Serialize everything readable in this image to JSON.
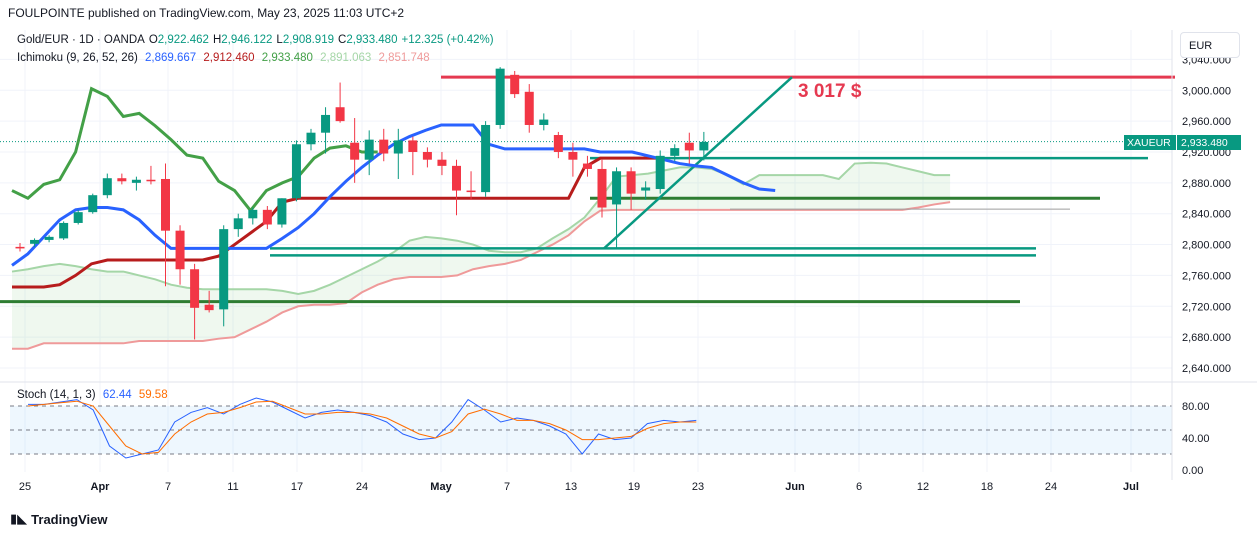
{
  "header": {
    "publisher_line": "FOULPOINTE published on TradingView.com, May 23, 2025 11:03 UTC+2"
  },
  "legend": {
    "symbol": "Gold/EUR · 1D · OANDA",
    "open_label": "O",
    "open": "2,922.462",
    "high_label": "H",
    "high": "2,946.122",
    "low_label": "L",
    "low": "2,908.919",
    "close_label": "C",
    "close": "2,933.480",
    "change": "+12.325 (+0.42%)",
    "ichimoku_label": "Ichimoku (9, 26, 52, 26)",
    "ichimoku_values": [
      {
        "value": "2,869.667",
        "color": "#2962ff"
      },
      {
        "value": "2,912.460",
        "color": "#b71c1c"
      },
      {
        "value": "2,933.480",
        "color": "#43a047"
      },
      {
        "value": "2,891.063",
        "color": "#a5d6a7"
      },
      {
        "value": "2,851.748",
        "color": "#ef9a9a"
      }
    ],
    "stoch_label": "Stoch (14, 1, 3)",
    "stoch_k": "62.44",
    "stoch_d": "59.58"
  },
  "currency_button": "EUR",
  "annotation": "3 017 $",
  "price_tag": {
    "symbol": "XAUEUR",
    "value": "2,933.480"
  },
  "footer_logo": "TradingView",
  "colors": {
    "up": "#089981",
    "down": "#f23645",
    "tenkan": "#2962ff",
    "kijun": "#b71c1c",
    "chikou": "#43a047",
    "spanA": "#a5d6a7",
    "spanB": "#ef9a9a",
    "teal": "#089981",
    "resistance": "#e53950",
    "stoch_k": "#2962ff",
    "stoch_d": "#ff6d00"
  },
  "chart_data": {
    "type": "candlestick",
    "price_axis_ticks": [
      "3,040.000",
      "3,000.000",
      "2,960.000",
      "2,920.000",
      "2,880.000",
      "2,840.000",
      "2,800.000",
      "2,760.000",
      "2,720.000",
      "2,680.000",
      "2,640.000"
    ],
    "stoch_axis_ticks": [
      "80.00",
      "40.00",
      "0.00"
    ],
    "x_ticks": [
      "25",
      "Apr",
      "7",
      "11",
      "17",
      "24",
      "May",
      "7",
      "13",
      "19",
      "23",
      "Jun",
      "6",
      "12",
      "18",
      "24",
      "Jul"
    ],
    "candles": [
      {
        "o": 2797,
        "h": 2802,
        "l": 2791,
        "c": 2795
      },
      {
        "o": 2801,
        "h": 2808,
        "l": 2797,
        "c": 2806
      },
      {
        "o": 2806,
        "h": 2812,
        "l": 2803,
        "c": 2810
      },
      {
        "o": 2808,
        "h": 2830,
        "l": 2806,
        "c": 2828
      },
      {
        "o": 2828,
        "h": 2845,
        "l": 2826,
        "c": 2842
      },
      {
        "o": 2842,
        "h": 2866,
        "l": 2840,
        "c": 2864
      },
      {
        "o": 2864,
        "h": 2892,
        "l": 2860,
        "c": 2886
      },
      {
        "o": 2886,
        "h": 2892,
        "l": 2878,
        "c": 2882
      },
      {
        "o": 2880,
        "h": 2888,
        "l": 2870,
        "c": 2884
      },
      {
        "o": 2884,
        "h": 2902,
        "l": 2878,
        "c": 2882
      },
      {
        "o": 2885,
        "h": 2905,
        "l": 2746,
        "c": 2818
      },
      {
        "o": 2818,
        "h": 2825,
        "l": 2748,
        "c": 2768
      },
      {
        "o": 2768,
        "h": 2775,
        "l": 2677,
        "c": 2718
      },
      {
        "o": 2722,
        "h": 2740,
        "l": 2712,
        "c": 2715
      },
      {
        "o": 2716,
        "h": 2825,
        "l": 2694,
        "c": 2820
      },
      {
        "o": 2820,
        "h": 2840,
        "l": 2810,
        "c": 2834
      },
      {
        "o": 2834,
        "h": 2848,
        "l": 2826,
        "c": 2845
      },
      {
        "o": 2845,
        "h": 2850,
        "l": 2820,
        "c": 2826
      },
      {
        "o": 2826,
        "h": 2860,
        "l": 2822,
        "c": 2860
      },
      {
        "o": 2860,
        "h": 2935,
        "l": 2856,
        "c": 2930
      },
      {
        "o": 2930,
        "h": 2950,
        "l": 2922,
        "c": 2945
      },
      {
        "o": 2945,
        "h": 2978,
        "l": 2918,
        "c": 2968
      },
      {
        "o": 2978,
        "h": 3010,
        "l": 2958,
        "c": 2960
      },
      {
        "o": 2932,
        "h": 2964,
        "l": 2880,
        "c": 2910
      },
      {
        "o": 2910,
        "h": 2948,
        "l": 2890,
        "c": 2936
      },
      {
        "o": 2936,
        "h": 2950,
        "l": 2908,
        "c": 2918
      },
      {
        "o": 2918,
        "h": 2950,
        "l": 2885,
        "c": 2935
      },
      {
        "o": 2935,
        "h": 2940,
        "l": 2890,
        "c": 2920
      },
      {
        "o": 2920,
        "h": 2926,
        "l": 2900,
        "c": 2910
      },
      {
        "o": 2910,
        "h": 2920,
        "l": 2890,
        "c": 2902
      },
      {
        "o": 2902,
        "h": 2910,
        "l": 2838,
        "c": 2870
      },
      {
        "o": 2870,
        "h": 2895,
        "l": 2858,
        "c": 2868
      },
      {
        "o": 2868,
        "h": 2960,
        "l": 2862,
        "c": 2955
      },
      {
        "o": 2955,
        "h": 3030,
        "l": 2950,
        "c": 3028
      },
      {
        "o": 3020,
        "h": 3025,
        "l": 2990,
        "c": 2995
      },
      {
        "o": 2998,
        "h": 3008,
        "l": 2945,
        "c": 2955
      },
      {
        "o": 2955,
        "h": 2970,
        "l": 2948,
        "c": 2962
      },
      {
        "o": 2942,
        "h": 2946,
        "l": 2912,
        "c": 2920
      },
      {
        "o": 2920,
        "h": 2932,
        "l": 2888,
        "c": 2910
      },
      {
        "o": 2905,
        "h": 2915,
        "l": 2888,
        "c": 2898
      },
      {
        "o": 2898,
        "h": 2910,
        "l": 2835,
        "c": 2848
      },
      {
        "o": 2852,
        "h": 2900,
        "l": 2795,
        "c": 2895
      },
      {
        "o": 2895,
        "h": 2900,
        "l": 2845,
        "c": 2866
      },
      {
        "o": 2870,
        "h": 2882,
        "l": 2858,
        "c": 2874
      },
      {
        "o": 2872,
        "h": 2922,
        "l": 2866,
        "c": 2915
      },
      {
        "o": 2915,
        "h": 2930,
        "l": 2908,
        "c": 2925
      },
      {
        "o": 2932,
        "h": 2945,
        "l": 2905,
        "c": 2922
      },
      {
        "o": 2922,
        "h": 2946,
        "l": 2909,
        "c": 2933
      }
    ],
    "tenkan": [
      2773,
      2788,
      2810,
      2832,
      2845,
      2848,
      2848,
      2845,
      2832,
      2812,
      2795,
      2795,
      2795,
      2795,
      2795,
      2795,
      2795,
      2808,
      2822,
      2840,
      2862,
      2882,
      2900,
      2916,
      2930,
      2940,
      2948,
      2955,
      2955,
      2955,
      2930,
      2924,
      2924,
      2924,
      2924,
      2924,
      2924,
      2920,
      2920,
      2920,
      2915,
      2910,
      2905,
      2902,
      2900,
      2890,
      2880,
      2872,
      2870
    ],
    "kijun": [
      2745,
      2745,
      2745,
      2748,
      2760,
      2775,
      2780,
      2780,
      2780,
      2780,
      2780,
      2780,
      2780,
      2785,
      2800,
      2815,
      2830,
      2855,
      2860,
      2860,
      2860,
      2860,
      2860,
      2860,
      2860,
      2860,
      2860,
      2860,
      2860,
      2860,
      2860,
      2860,
      2860,
      2860,
      2860,
      2860,
      2900,
      2912,
      2912,
      2912,
      2912,
      2912
    ],
    "chikou": [
      2870,
      2860,
      2878,
      2884,
      2920,
      3002,
      2992,
      2966,
      2970,
      2954,
      2936,
      2916,
      2912,
      2882,
      2870,
      2844,
      2870,
      2880,
      2888,
      2912,
      2925,
      2928,
      2920,
      2920
    ],
    "span_a": [
      2765,
      2768,
      2772,
      2775,
      2772,
      2768,
      2765,
      2765,
      2760,
      2755,
      2748,
      2744,
      2742,
      2742,
      2742,
      2742,
      2742,
      2740,
      2736,
      2740,
      2748,
      2758,
      2768,
      2778,
      2790,
      2805,
      2810,
      2808,
      2805,
      2800,
      2792,
      2790,
      2790,
      2795,
      2808,
      2820,
      2835,
      2860,
      2888,
      2890,
      2892,
      2896,
      2900,
      2900,
      2898,
      2890,
      2878,
      2890,
      2890,
      2890,
      2890,
      2890,
      2885,
      2905,
      2906,
      2905,
      2900,
      2895,
      2890,
      2890
    ],
    "span_b": [
      2665,
      2665,
      2672,
      2672,
      2672,
      2672,
      2672,
      2672,
      2675,
      2675,
      2675,
      2675,
      2675,
      2678,
      2680,
      2690,
      2700,
      2712,
      2720,
      2722,
      2722,
      2724,
      2738,
      2748,
      2755,
      2758,
      2758,
      2758,
      2760,
      2768,
      2772,
      2775,
      2780,
      2790,
      2800,
      2812,
      2830,
      2844,
      2845,
      2845,
      2845,
      2845,
      2845,
      2845,
      2845,
      2845,
      2845,
      2845,
      2845,
      2845,
      2845,
      2845,
      2845,
      2845,
      2845,
      2845,
      2845,
      2848,
      2852,
      2855
    ],
    "stoch_k": [
      82,
      82,
      85,
      88,
      75,
      30,
      15,
      20,
      25,
      60,
      72,
      78,
      70,
      82,
      90,
      85,
      75,
      65,
      72,
      75,
      72,
      68,
      60,
      45,
      38,
      40,
      60,
      88,
      75,
      60,
      65,
      62,
      55,
      45,
      20,
      45,
      38,
      40,
      58,
      62,
      60,
      62
    ],
    "stoch_d": [
      80,
      82,
      84,
      86,
      80,
      55,
      30,
      20,
      22,
      45,
      60,
      70,
      72,
      78,
      85,
      86,
      78,
      70,
      70,
      72,
      72,
      70,
      65,
      55,
      45,
      40,
      48,
      70,
      76,
      70,
      62,
      62,
      58,
      50,
      38,
      38,
      40,
      42,
      52,
      58,
      60,
      60
    ],
    "levels": {
      "resistance": 3017,
      "green_upper": 2912,
      "green_mid": 2860,
      "teal_low1": 2795,
      "teal_low2": 2786,
      "green_low": 2726
    }
  }
}
